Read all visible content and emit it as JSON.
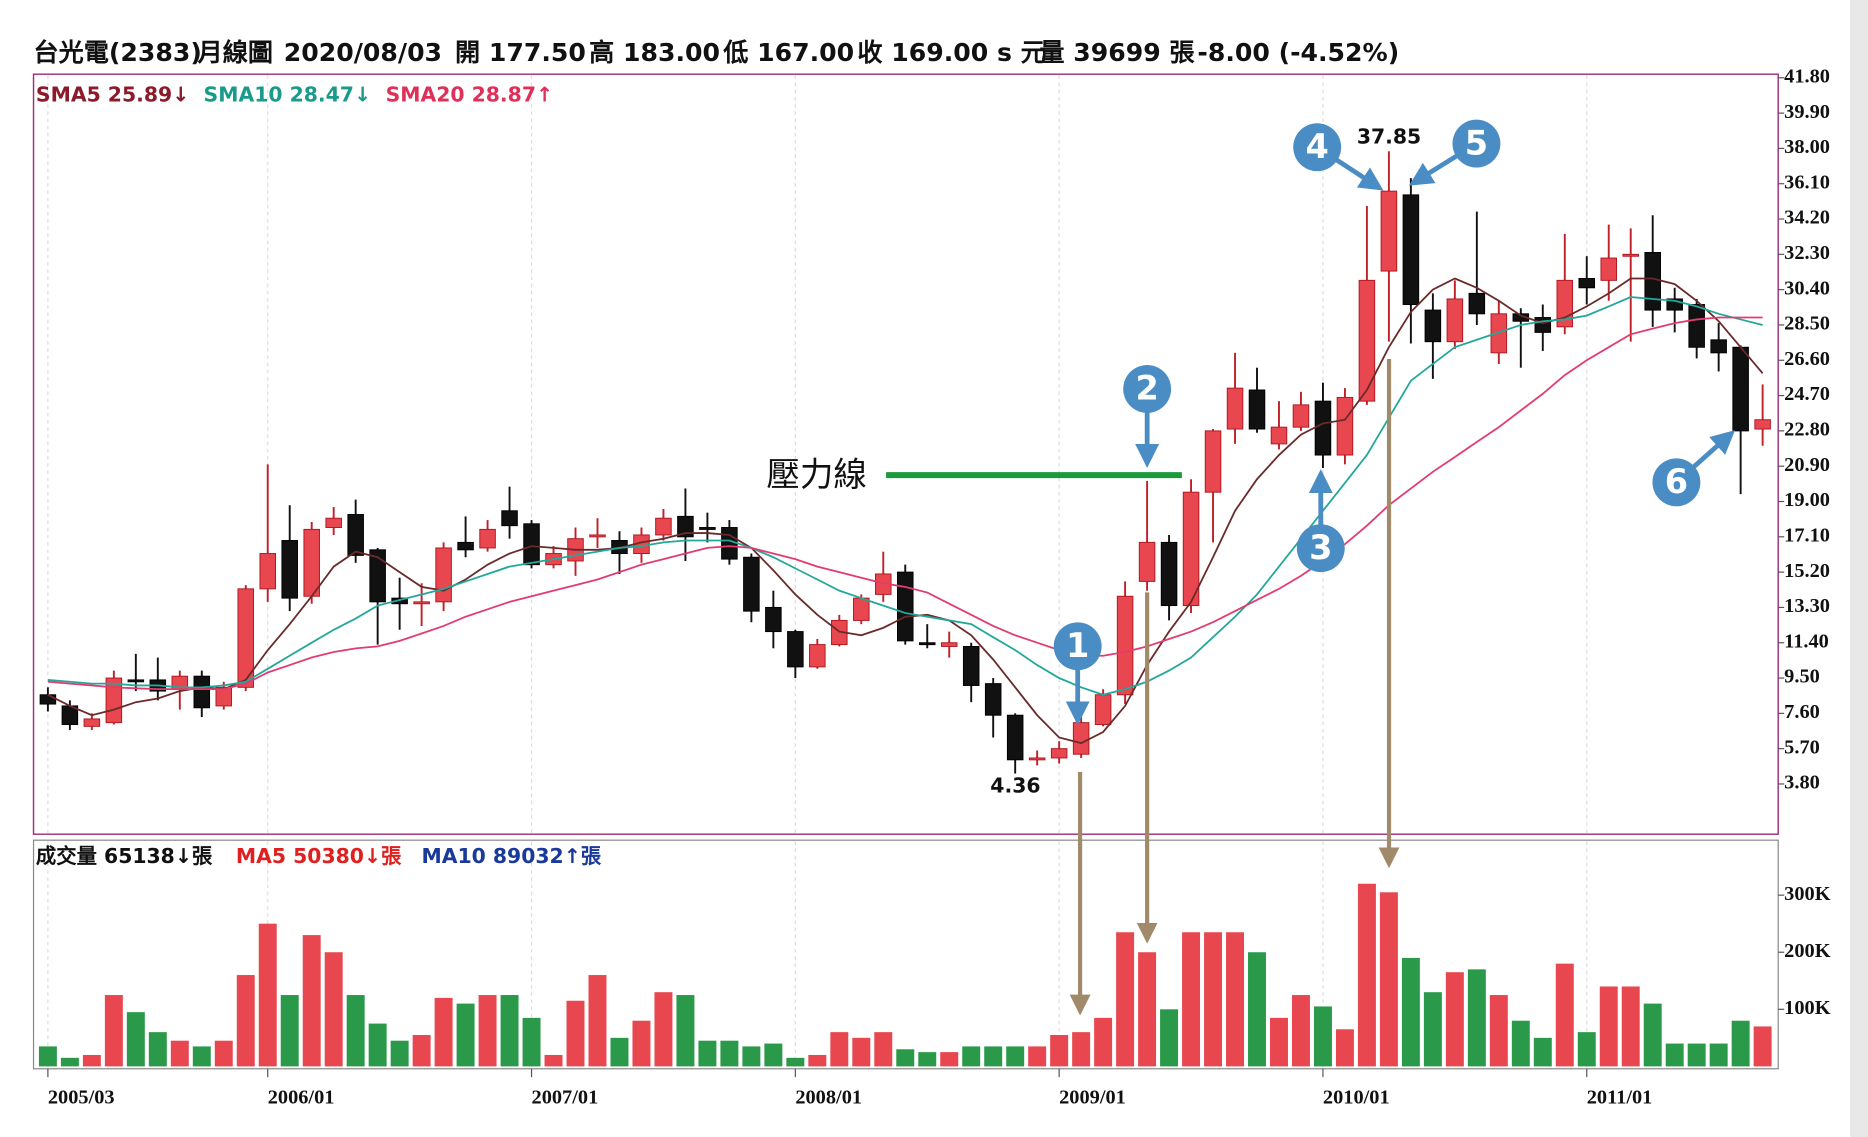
{
  "chart_data": {
    "type": "candlestick",
    "header": [
      "台光電(2383)",
      "月線圖",
      "2020/08/03",
      "開 177.50",
      "高 183.00",
      "低 167.00",
      "收 169.00 s 元",
      "量 39699 張",
      "-8.00 (-4.52%)"
    ],
    "categories": [
      "2005/03",
      null,
      null,
      null,
      null,
      null,
      null,
      null,
      null,
      null,
      "2006/01",
      null,
      null,
      null,
      null,
      null,
      null,
      null,
      null,
      null,
      null,
      null,
      "2007/01",
      null,
      null,
      null,
      null,
      null,
      null,
      null,
      null,
      null,
      null,
      null,
      "2008/01",
      null,
      null,
      null,
      null,
      null,
      null,
      null,
      null,
      null,
      null,
      null,
      "2009/01",
      null,
      null,
      null,
      null,
      null,
      null,
      null,
      null,
      null,
      null,
      null,
      "2010/01",
      null,
      null,
      null,
      null,
      null,
      null,
      null,
      null,
      null,
      null,
      null,
      "2011/01",
      null,
      null,
      null,
      null,
      null,
      null,
      null,
      null
    ],
    "open": [
      8.6,
      8.0,
      6.9,
      7.1,
      9.4,
      9.4,
      8.9,
      9.6,
      8.0,
      9.0,
      14.3,
      16.9,
      13.9,
      17.6,
      18.3,
      16.4,
      13.8,
      13.6,
      13.6,
      16.8,
      16.5,
      18.5,
      17.8,
      15.6,
      15.8,
      17.2,
      16.9,
      16.2,
      17.2,
      18.2,
      17.6,
      17.6,
      16.0,
      13.3,
      12.0,
      10.1,
      11.3,
      12.6,
      14.0,
      15.2,
      11.4,
      11.2,
      11.2,
      9.2,
      7.5,
      5.1,
      5.2,
      5.4,
      7.0,
      8.6,
      14.7,
      16.8,
      13.4,
      19.5,
      22.9,
      25.0,
      22.1,
      23.0,
      24.4,
      21.5,
      24.4,
      31.4,
      35.5,
      29.3,
      27.6,
      30.2,
      27.0,
      29.1,
      28.9,
      28.4,
      31.0,
      30.9,
      32.3,
      32.4,
      29.9,
      29.6,
      27.7,
      27.3,
      22.9
    ],
    "high": [
      9.0,
      8.3,
      7.6,
      9.9,
      10.8,
      10.6,
      9.9,
      9.9,
      9.3,
      14.5,
      21.0,
      18.8,
      17.9,
      18.7,
      19.1,
      16.5,
      14.9,
      14.6,
      16.8,
      18.2,
      18.0,
      19.8,
      18.0,
      16.6,
      17.6,
      18.1,
      17.4,
      17.6,
      18.6,
      19.7,
      18.4,
      18.0,
      16.2,
      14.2,
      12.1,
      11.6,
      12.9,
      14.0,
      16.3,
      15.6,
      12.4,
      12.0,
      11.4,
      9.5,
      7.6,
      5.6,
      6.1,
      7.4,
      8.9,
      14.7,
      20.1,
      17.2,
      20.2,
      22.9,
      27.0,
      26.2,
      24.4,
      24.9,
      25.4,
      25.1,
      34.9,
      37.85,
      36.4,
      30.2,
      30.9,
      34.6,
      29.8,
      29.4,
      29.6,
      33.4,
      32.2,
      33.9,
      33.7,
      34.4,
      30.5,
      29.9,
      28.6,
      27.4,
      25.3
    ],
    "low": [
      7.7,
      6.7,
      6.7,
      7.0,
      8.8,
      8.3,
      7.8,
      7.4,
      7.8,
      8.8,
      13.6,
      13.1,
      13.5,
      17.2,
      15.7,
      11.3,
      12.1,
      12.3,
      13.1,
      16.0,
      16.3,
      17.0,
      15.4,
      15.4,
      15.0,
      16.5,
      15.1,
      15.7,
      16.9,
      15.8,
      16.8,
      15.6,
      12.5,
      11.1,
      9.5,
      10.0,
      11.2,
      12.4,
      13.6,
      11.3,
      11.1,
      10.6,
      8.2,
      6.3,
      4.36,
      4.8,
      4.9,
      5.2,
      6.9,
      8.1,
      14.2,
      12.6,
      13.0,
      16.8,
      22.1,
      22.7,
      21.8,
      22.8,
      20.8,
      21.0,
      24.2,
      27.6,
      27.5,
      25.6,
      27.2,
      28.5,
      26.4,
      26.2,
      27.1,
      28.0,
      29.6,
      29.8,
      27.6,
      28.4,
      28.1,
      26.7,
      26.0,
      19.4,
      22.0
    ],
    "close": [
      8.1,
      7.0,
      7.3,
      9.5,
      9.3,
      8.8,
      9.6,
      7.9,
      9.0,
      14.3,
      16.2,
      13.8,
      17.5,
      18.1,
      16.1,
      13.6,
      13.5,
      13.6,
      16.5,
      16.4,
      17.5,
      17.7,
      15.6,
      16.2,
      17.0,
      17.2,
      16.2,
      17.2,
      18.1,
      17.1,
      17.5,
      15.9,
      13.1,
      12.0,
      10.1,
      11.3,
      12.6,
      13.8,
      15.1,
      11.5,
      11.3,
      11.4,
      9.1,
      7.5,
      5.1,
      5.2,
      5.7,
      7.1,
      8.6,
      13.9,
      16.8,
      13.4,
      19.5,
      22.8,
      25.1,
      22.9,
      23.0,
      24.2,
      21.5,
      24.6,
      30.9,
      35.7,
      29.6,
      27.6,
      29.9,
      29.1,
      29.1,
      28.7,
      28.1,
      30.9,
      30.5,
      32.1,
      32.3,
      29.3,
      29.3,
      27.3,
      27.0,
      22.8,
      23.4
    ],
    "up_color": "#e8474f",
    "down_color": "#111111",
    "ylim": [
      1.2,
      41.8
    ],
    "yticks": [
      {
        "value": 41.8,
        "label": "41.80"
      },
      {
        "value": 39.9,
        "label": "39.90"
      },
      {
        "value": 38.0,
        "label": "38.00"
      },
      {
        "value": 36.1,
        "label": "36.10"
      },
      {
        "value": 34.2,
        "label": "34.20"
      },
      {
        "value": 32.3,
        "label": "32.30"
      },
      {
        "value": 30.4,
        "label": "30.40"
      },
      {
        "value": 28.5,
        "label": "28.50"
      },
      {
        "value": 26.6,
        "label": "26.60"
      },
      {
        "value": 24.7,
        "label": "24.70"
      },
      {
        "value": 22.8,
        "label": "22.80"
      },
      {
        "value": 20.9,
        "label": "20.90"
      },
      {
        "value": 19.0,
        "label": "19.00"
      },
      {
        "value": 17.1,
        "label": "17.10"
      },
      {
        "value": 15.2,
        "label": "15.20"
      },
      {
        "value": 13.3,
        "label": "13.30"
      },
      {
        "value": 11.4,
        "label": "11.40"
      },
      {
        "value": 9.5,
        "label": "9.50"
      },
      {
        "value": 7.6,
        "label": "7.60"
      },
      {
        "value": 5.7,
        "label": "5.70"
      },
      {
        "value": 3.8,
        "label": "3.80"
      }
    ],
    "x_grid": true,
    "moving_averages": [
      {
        "name": "SMA5 25.89↓",
        "color": "#6b2a2a",
        "legend_color": "#8b1a2a",
        "values": [
          8.6,
          8.0,
          7.5,
          7.8,
          8.2,
          8.4,
          8.8,
          9.0,
          8.9,
          9.4,
          11.0,
          12.4,
          13.9,
          15.5,
          16.3,
          16.0,
          15.2,
          14.4,
          14.2,
          14.8,
          15.6,
          16.2,
          16.6,
          16.5,
          16.4,
          16.4,
          16.5,
          16.8,
          17.0,
          17.3,
          17.3,
          17.2,
          16.5,
          15.3,
          14.0,
          12.9,
          12.0,
          11.8,
          12.2,
          12.8,
          12.9,
          12.6,
          11.8,
          10.5,
          9.0,
          7.5,
          6.3,
          6.0,
          6.6,
          8.0,
          10.2,
          12.0,
          13.6,
          16.0,
          18.5,
          20.2,
          21.5,
          22.6,
          23.2,
          23.4,
          25.0,
          27.3,
          29.2,
          30.4,
          31.0,
          30.5,
          29.8,
          29.0,
          28.6,
          28.9,
          29.5,
          30.2,
          31.0,
          31.0,
          30.7,
          29.8,
          28.7,
          27.3,
          25.9
        ]
      },
      {
        "name": "SMA10 28.47↓",
        "color": "#22a89a",
        "legend_color": "#1a9a8a",
        "values": [
          9.4,
          9.3,
          9.2,
          9.2,
          9.1,
          9.1,
          9.0,
          9.0,
          9.1,
          9.3,
          10.0,
          10.7,
          11.4,
          12.1,
          12.7,
          13.4,
          13.7,
          14.0,
          14.3,
          14.7,
          15.1,
          15.5,
          15.7,
          15.9,
          16.1,
          16.3,
          16.5,
          16.6,
          16.8,
          16.9,
          16.9,
          16.9,
          16.5,
          16.0,
          15.4,
          14.8,
          14.2,
          13.8,
          13.4,
          13.0,
          12.8,
          12.6,
          12.4,
          11.7,
          11.0,
          10.2,
          9.5,
          9.0,
          8.6,
          8.9,
          9.3,
          9.9,
          10.6,
          11.7,
          12.8,
          14.0,
          15.5,
          17.0,
          18.5,
          20.0,
          21.5,
          23.5,
          25.5,
          26.4,
          27.3,
          27.7,
          28.1,
          28.5,
          28.7,
          28.8,
          29.0,
          29.5,
          30.0,
          29.9,
          29.8,
          29.5,
          29.1,
          28.8,
          28.5
        ]
      },
      {
        "name": "SMA20 28.87↑",
        "color": "#e23c6e",
        "legend_color": "#e0305a",
        "values": [
          9.3,
          9.2,
          9.1,
          9.0,
          8.95,
          8.9,
          8.9,
          8.9,
          8.9,
          9.2,
          9.8,
          10.2,
          10.6,
          10.9,
          11.1,
          11.2,
          11.5,
          11.9,
          12.3,
          12.8,
          13.2,
          13.6,
          13.9,
          14.2,
          14.5,
          14.8,
          15.2,
          15.6,
          15.9,
          16.2,
          16.5,
          16.6,
          16.5,
          16.2,
          15.9,
          15.5,
          15.2,
          14.9,
          14.6,
          14.4,
          14.1,
          13.5,
          12.9,
          12.3,
          11.8,
          11.4,
          11.0,
          10.7,
          10.7,
          10.9,
          11.2,
          11.6,
          12.0,
          12.5,
          13.1,
          13.7,
          14.3,
          15.0,
          15.8,
          16.7,
          17.7,
          18.8,
          19.7,
          20.6,
          21.4,
          22.2,
          23.0,
          23.9,
          24.8,
          25.8,
          26.6,
          27.3,
          28.0,
          28.3,
          28.6,
          28.8,
          28.9,
          28.9,
          28.9
        ]
      }
    ],
    "volume": {
      "values": [
        35000,
        15000,
        20000,
        125000,
        95000,
        60000,
        45000,
        35000,
        45000,
        160000,
        250000,
        125000,
        230000,
        200000,
        125000,
        75000,
        45000,
        55000,
        120000,
        110000,
        125000,
        125000,
        85000,
        20000,
        115000,
        160000,
        50000,
        80000,
        130000,
        125000,
        45000,
        45000,
        35000,
        40000,
        15000,
        20000,
        60000,
        50000,
        60000,
        30000,
        25000,
        25000,
        35000,
        35000,
        35000,
        35000,
        55000,
        60000,
        85000,
        235000,
        200000,
        100000,
        235000,
        235000,
        235000,
        200000,
        85000,
        125000,
        105000,
        65000,
        320000,
        305000,
        190000,
        130000,
        165000,
        170000,
        125000,
        80000,
        50000,
        180000,
        60000,
        140000,
        140000,
        110000,
        40000,
        40000,
        40000,
        80000,
        70000
      ],
      "up_color": "#e8474f",
      "down_color": "#2a9a4a",
      "ylim": [
        0,
        390000
      ],
      "yticks": [
        {
          "value": 100000,
          "label": "100K"
        },
        {
          "value": 200000,
          "label": "200K"
        },
        {
          "value": 300000,
          "label": "300K"
        }
      ],
      "legend": [
        {
          "name": "成交量 65138↓張",
          "color": "#111111"
        },
        {
          "name": "MA5 50380↓張",
          "color": "#e02020"
        },
        {
          "name": "MA10 89032↑張",
          "color": "#1a3a9a"
        }
      ]
    },
    "annotations": {
      "high": "37.85",
      "low": "4.36",
      "pressure_line": "壓力線",
      "markers": [
        "1",
        "2",
        "3",
        "4",
        "5",
        "6"
      ]
    }
  }
}
